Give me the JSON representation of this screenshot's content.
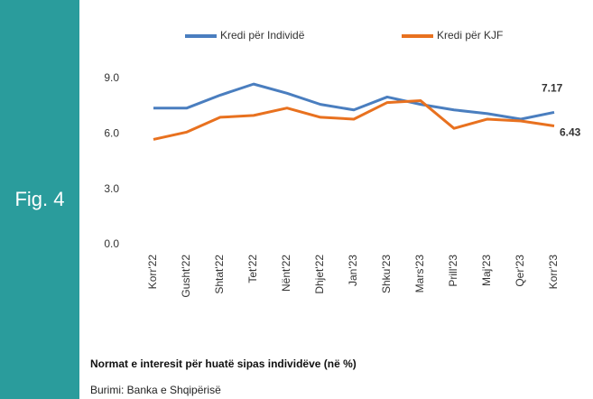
{
  "figure_label": "Fig. 4",
  "caption": "Normat e interesit për huatë sipas  individëve (në %)",
  "source": "Burimi: Banka e Shqipërisë",
  "chart_data": {
    "type": "line",
    "categories": [
      "Korr'22",
      "Gusht'22",
      "Shtat'22",
      "Tet'22",
      "Nënt'22",
      "Dhjet'22",
      "Jan'23",
      "Shku'23",
      "Mars'23",
      "Prill'23",
      "Maj'23",
      "Qer'23",
      "Korr'23"
    ],
    "series": [
      {
        "name": "Kredi për Individë",
        "color": "#4a7ebf",
        "values": [
          7.4,
          7.4,
          8.1,
          8.7,
          8.2,
          7.6,
          7.3,
          8.0,
          7.6,
          7.3,
          7.1,
          6.8,
          7.17
        ]
      },
      {
        "name": "Kredi për KJF",
        "color": "#e8711f",
        "values": [
          5.7,
          6.1,
          6.9,
          7.0,
          7.4,
          6.9,
          6.8,
          7.7,
          7.8,
          6.3,
          6.8,
          6.7,
          6.43
        ]
      }
    ],
    "ylim": [
      0,
      9
    ],
    "yticks": [
      {
        "value": 0,
        "label": "0.0"
      },
      {
        "value": 3,
        "label": "3.0"
      },
      {
        "value": 6,
        "label": "6.0"
      },
      {
        "value": 9,
        "label": "9.0"
      }
    ],
    "legend": "top"
  }
}
